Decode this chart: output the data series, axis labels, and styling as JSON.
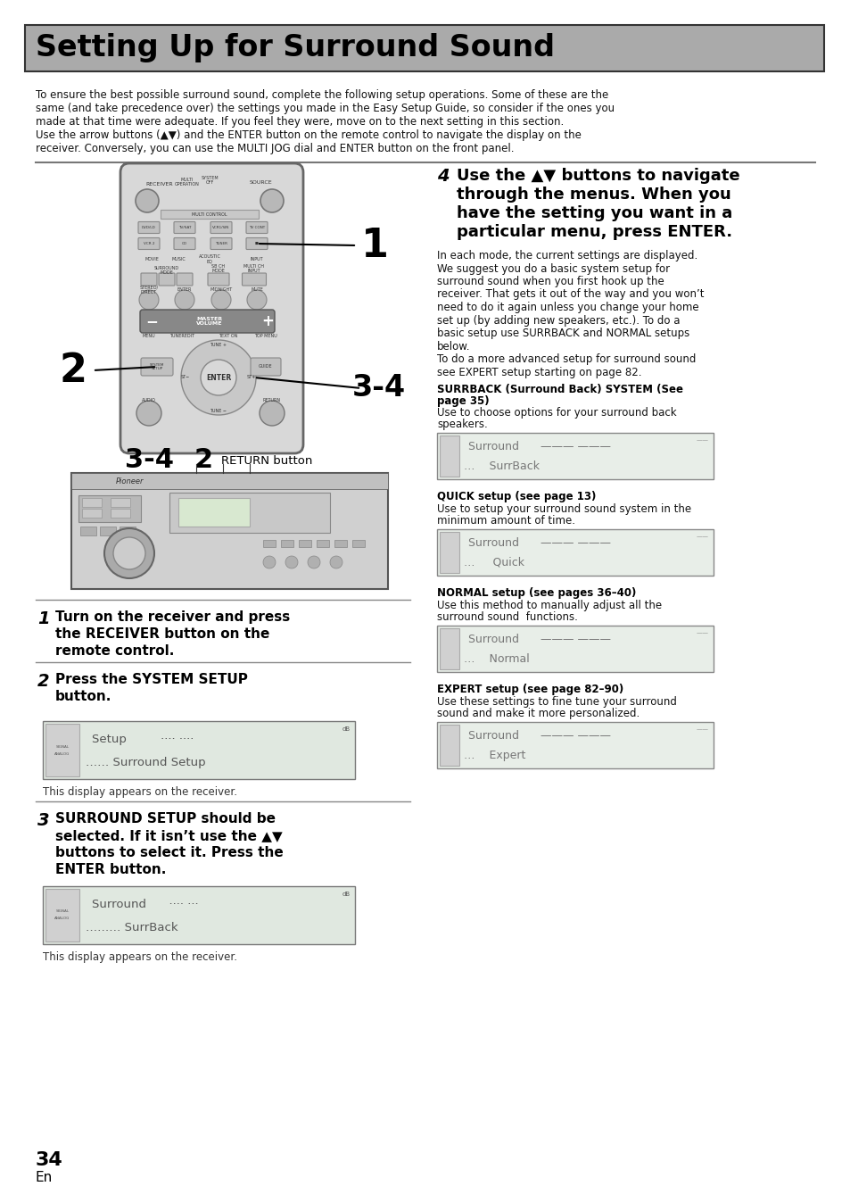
{
  "title": "Setting Up for Surround Sound",
  "title_bg": "#aaaaaa",
  "title_color": "#000000",
  "page_bg": "#ffffff",
  "intro_text_lines": [
    "To ensure the best possible surround sound, complete the following setup operations. Some of these are the",
    "same (and take precedence over) the settings you made in the Easy Setup Guide, so consider if the ones you",
    "made at that time were adequate. If you feel they were, move on to the next setting in this section.",
    "Use the arrow buttons (▲▼) and the ENTER button on the remote control to navigate the display on the",
    "receiver. Conversely, you can use the MULTI JOG dial and ENTER button on the front panel."
  ],
  "step1_label": "1",
  "step1_text": "Turn on the receiver and press\nthe RECEIVER button on the\nremote control.",
  "step2_label": "2",
  "step2_text": "Press the SYSTEM SETUP\nbutton.",
  "step2_caption": "This display appears on the receiver.",
  "step3_label": "3",
  "step3_text": "SURROUND SETUP should be\nselected. If it isn’t use the ▲▼\nbuttons to select it. Press the\nENTER button.",
  "step3_caption": "This display appears on the receiver.",
  "step4_label": "4",
  "step4_heading_lines": [
    "Use the ▲▼ buttons to navigate",
    "through the menus. When you",
    "have the setting you want in a",
    "particular menu, press ENTER."
  ],
  "step4_body_lines": [
    "In each mode, the current settings are displayed.",
    "We suggest you do a basic system setup for",
    "surround sound when you first hook up the",
    "receiver. That gets it out of the way and you won’t",
    "need to do it again unless you change your home",
    "set up (by adding new speakers, etc.). To do a",
    "basic setup use SURRBACK and NORMAL setups",
    "below.",
    "To do a more advanced setup for surround sound",
    "see EXPERT setup starting on page 82."
  ],
  "surrback_heading_lines": [
    "SURRBACK (Surround Back) SYSTEM (See",
    "page 35)"
  ],
  "surrback_body_lines": [
    "Use to choose options for your surround back",
    "speakers."
  ],
  "quick_heading": "QUICK setup (see page 13)",
  "quick_body_lines": [
    "Use to setup your surround sound system in the",
    "minimum amount of time."
  ],
  "normal_heading": "NORMAL setup (see pages 36–40)",
  "normal_body_lines": [
    "Use this method to manually adjust all the",
    "surround sound  functions."
  ],
  "expert_heading": "EXPERT setup (see page 82–90)",
  "expert_body_lines": [
    "Use these settings to fine tune your surround",
    "sound and make it more personalized."
  ],
  "page_number": "34",
  "page_lang": "En",
  "label_34_2_a": "3-4",
  "label_34_2_b": "2",
  "label_return": "RETURN button",
  "remote_label_1": "1",
  "remote_label_2": "2",
  "remote_label_34": "3-4"
}
